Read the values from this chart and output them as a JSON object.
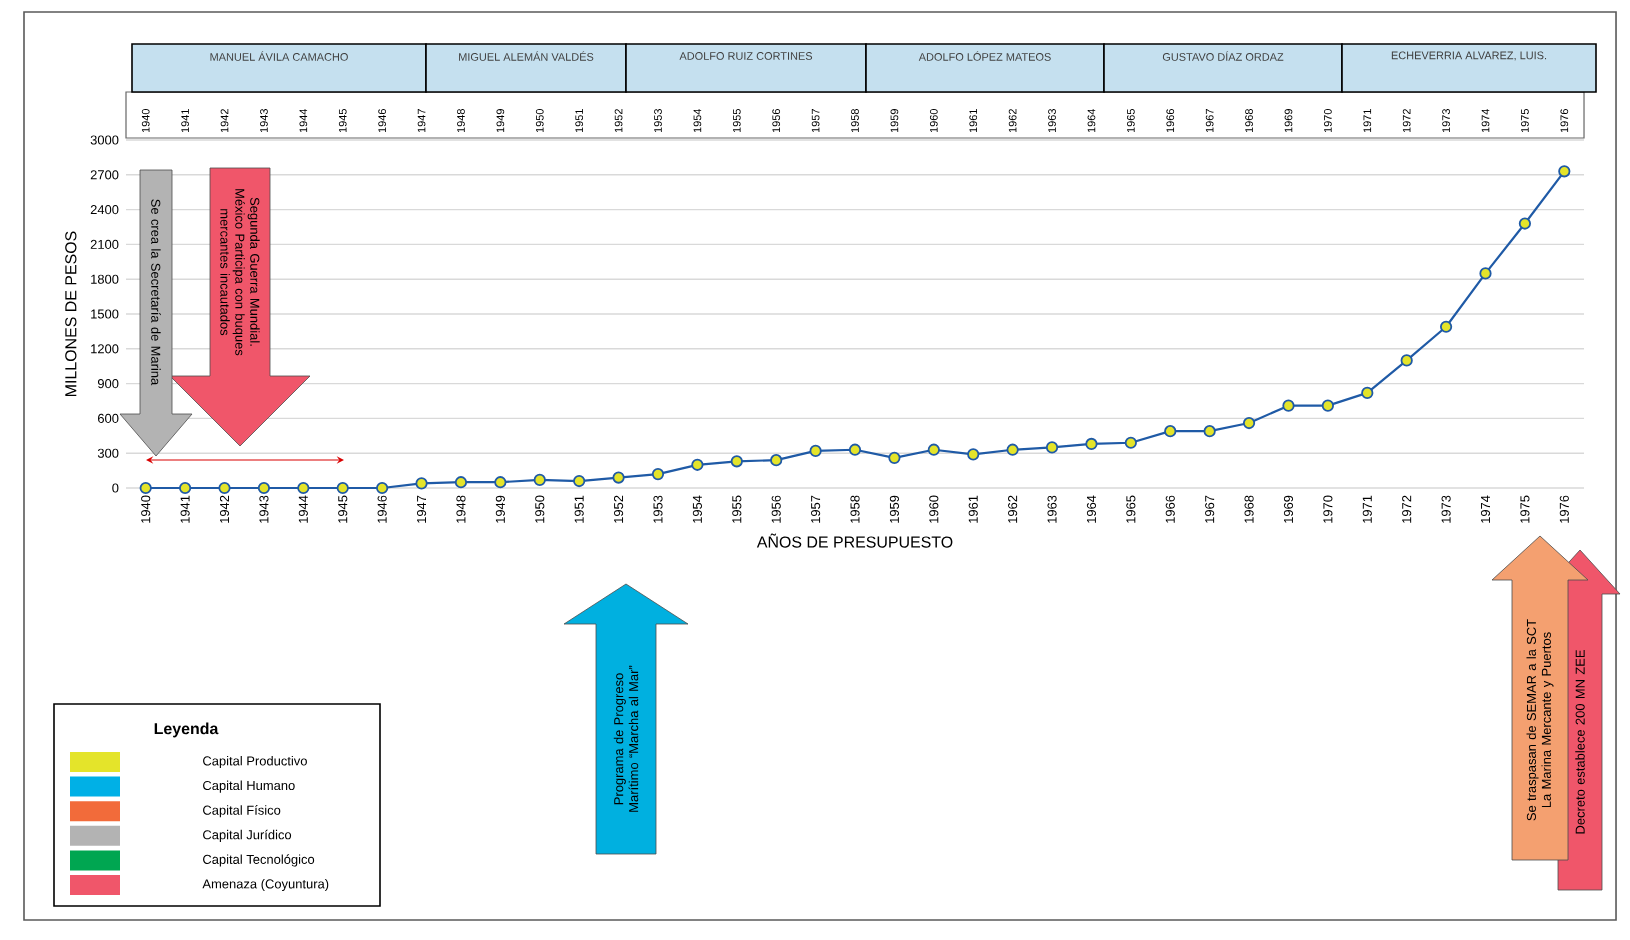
{
  "chart_data": {
    "type": "line",
    "xlabel": "AÑOS DE PRESUPUESTO",
    "ylabel": "MILLONES DE PESOS",
    "legend_title": "Leyenda",
    "x": [
      1940,
      1941,
      1942,
      1943,
      1944,
      1945,
      1946,
      1947,
      1948,
      1949,
      1950,
      1951,
      1952,
      1953,
      1954,
      1955,
      1956,
      1957,
      1958,
      1959,
      1960,
      1961,
      1962,
      1963,
      1964,
      1965,
      1966,
      1967,
      1968,
      1969,
      1970,
      1971,
      1972,
      1973,
      1974,
      1975,
      1976
    ],
    "series": [
      {
        "name": "Capital Productivo",
        "color": "#e4e42a",
        "values": [
          0,
          0,
          0,
          0,
          0,
          0,
          0,
          40,
          50,
          50,
          70,
          60,
          90,
          120,
          200,
          230,
          240,
          320,
          330,
          260,
          330,
          290,
          330,
          350,
          380,
          390,
          490,
          490,
          560,
          710,
          710,
          820,
          1100,
          1390,
          1850,
          2280,
          2730
        ]
      }
    ],
    "xlim": [
      1939.5,
      1976.5
    ],
    "xticks": [
      1940,
      1941,
      1942,
      1943,
      1944,
      1945,
      1946,
      1947,
      1948,
      1949,
      1950,
      1951,
      1952,
      1953,
      1954,
      1955,
      1956,
      1957,
      1958,
      1959,
      1960,
      1961,
      1962,
      1963,
      1964,
      1965,
      1966,
      1967,
      1968,
      1969,
      1970,
      1971,
      1972,
      1973,
      1974,
      1975,
      1976
    ],
    "x2lim": [
      1939.5,
      1976.5
    ],
    "x2ticks": [
      1940,
      1941,
      1942,
      1943,
      1944,
      1945,
      1946,
      1947,
      1948,
      1949,
      1950,
      1951,
      1952,
      1953,
      1954,
      1955,
      1956,
      1957,
      1958,
      1959,
      1960,
      1961,
      1962,
      1963,
      1964,
      1965,
      1966,
      1967,
      1968,
      1969,
      1970,
      1971,
      1972,
      1973,
      1974,
      1975,
      1976
    ],
    "ylim": [
      0,
      3000
    ],
    "yticks": [
      0,
      300,
      600,
      900,
      1200,
      1500,
      1800,
      2100,
      2400,
      2700,
      3000
    ],
    "grid": "y",
    "marker": "circle",
    "legend": "bottom left",
    "annotations": [
      "MANUEL ÁVILA CAMACHO",
      "MIGUEL ALEMÁN VALDÉS",
      "ADOLFO RUIZ CORTINES",
      "ADOLFO LÓPEZ MATEOS",
      "GUSTAVO DÍAZ ORDAZ",
      "ECHEVERRIA ALVAREZ, LUIS.",
      "Se crea la Secretaría de Marina",
      "Segunda Guerra Mundial. México Participa con buques mercantes incautados",
      "Programa de Progreso Marítimo “Marcha al Mar”",
      "Se traspasan de SEMAR a la SCT La Marina Mercante y Puertos",
      "Decreto establece 200 MN ZEE",
      "Capital Humano",
      "Capital Físico",
      "Capital Jurídico",
      "Capital Tecnológico",
      "Amenaza (Coyuntura)"
    ]
  }
}
